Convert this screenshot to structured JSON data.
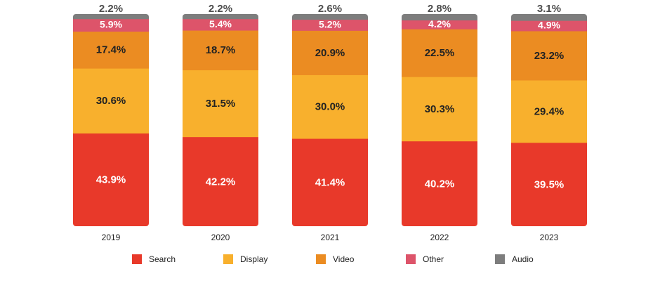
{
  "chart_data": {
    "type": "bar",
    "stacked": true,
    "categories": [
      "2019",
      "2020",
      "2021",
      "2022",
      "2023"
    ],
    "series": [
      {
        "name": "Search",
        "color": "#e8392a",
        "values": [
          43.9,
          42.2,
          41.4,
          40.2,
          39.5
        ],
        "labels": [
          "43.9%",
          "42.2%",
          "41.4%",
          "40.2%",
          "39.5%"
        ]
      },
      {
        "name": "Display",
        "color": "#f8b02d",
        "values": [
          30.6,
          31.5,
          30.0,
          30.3,
          29.4
        ],
        "labels": [
          "30.6%",
          "31.5%",
          "30.0%",
          "30.3%",
          "29.4%"
        ]
      },
      {
        "name": "Video",
        "color": "#eb8c22",
        "values": [
          17.4,
          18.7,
          20.9,
          22.5,
          23.2
        ],
        "labels": [
          "17.4%",
          "18.7%",
          "20.9%",
          "22.5%",
          "23.2%"
        ]
      },
      {
        "name": "Other",
        "color": "#dd546a",
        "values": [
          5.9,
          5.4,
          5.2,
          4.2,
          4.9
        ],
        "labels": [
          "5.9%",
          "5.4%",
          "5.2%",
          "4.2%",
          "4.9%"
        ]
      },
      {
        "name": "Audio",
        "color": "#7d7d7d",
        "values": [
          2.2,
          2.2,
          2.6,
          2.8,
          3.1
        ],
        "labels": [
          "2.2%",
          "2.2%",
          "2.6%",
          "2.8%",
          "3.1%"
        ]
      }
    ],
    "ylim": [
      0,
      100
    ],
    "grid": false,
    "legend_position": "bottom",
    "title": "",
    "xlabel": "",
    "ylabel": ""
  }
}
